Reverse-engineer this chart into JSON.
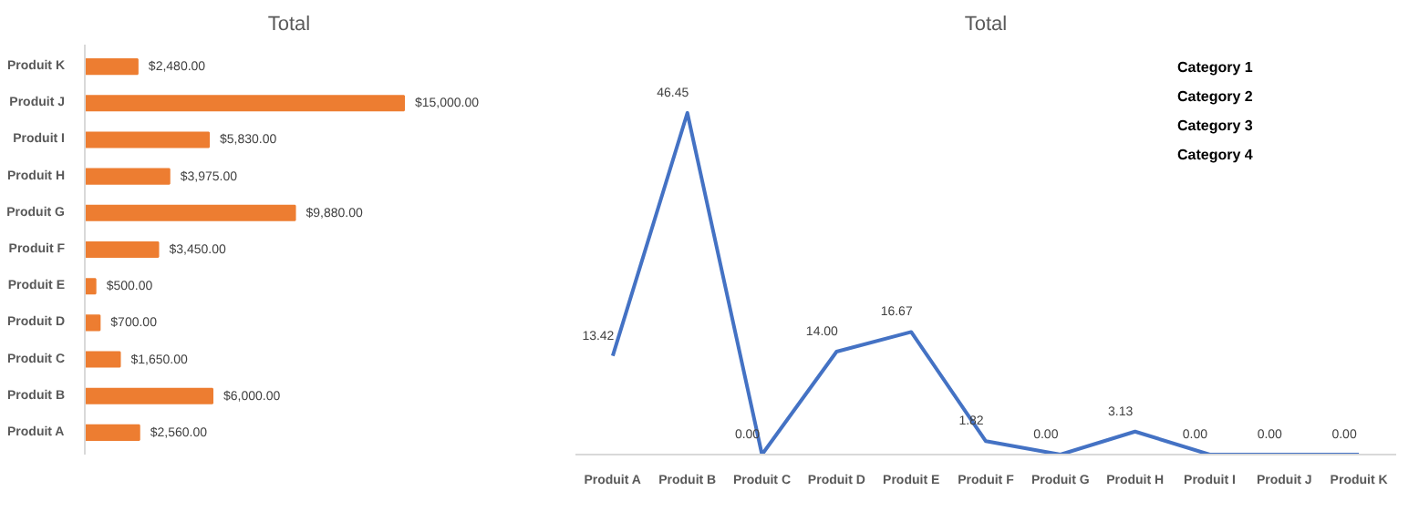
{
  "chart_data": [
    {
      "type": "bar",
      "orientation": "horizontal",
      "title": "Total",
      "categories": [
        "Produit K",
        "Produit J",
        "Produit I",
        "Produit H",
        "Produit G",
        "Produit F",
        "Produit E",
        "Produit D",
        "Produit C",
        "Produit B",
        "Produit A"
      ],
      "values": [
        2480,
        15000,
        5830,
        3975,
        9880,
        3450,
        500,
        700,
        1650,
        6000,
        2560
      ],
      "color": "#ed7d31",
      "value_labels": [
        "$2,480.00",
        "$15,000.00",
        "$5,830.00",
        "$3,975.00",
        "$9,880.00",
        "$3,450.00",
        "$500.00",
        "$700.00",
        "$1,650.00",
        "$6,000.00",
        "$2,560.00"
      ],
      "grid": false,
      "tick_labels": "y"
    },
    {
      "type": "line",
      "title": "Total",
      "categories": [
        "Produit A",
        "Produit B",
        "Produit C",
        "Produit D",
        "Produit E",
        "Produit F",
        "Produit G",
        "Produit H",
        "Produit I",
        "Produit J",
        "Produit K"
      ],
      "values": [
        13.42,
        46.45,
        0,
        14,
        16.67,
        1.82,
        0,
        3.13,
        0,
        0,
        0
      ],
      "color": "#4472c4",
      "value_labels": [
        "13.42",
        "46.45",
        "0.00",
        "14.00",
        "16.67",
        "1.82",
        "0.00",
        "3.13",
        "0.00",
        "0.00",
        "0.00"
      ],
      "grid": false,
      "tick_labels": "x",
      "marker": "none",
      "annotations": [
        "Category 1",
        "Category 2",
        "Category 3",
        "Category 4"
      ]
    }
  ]
}
